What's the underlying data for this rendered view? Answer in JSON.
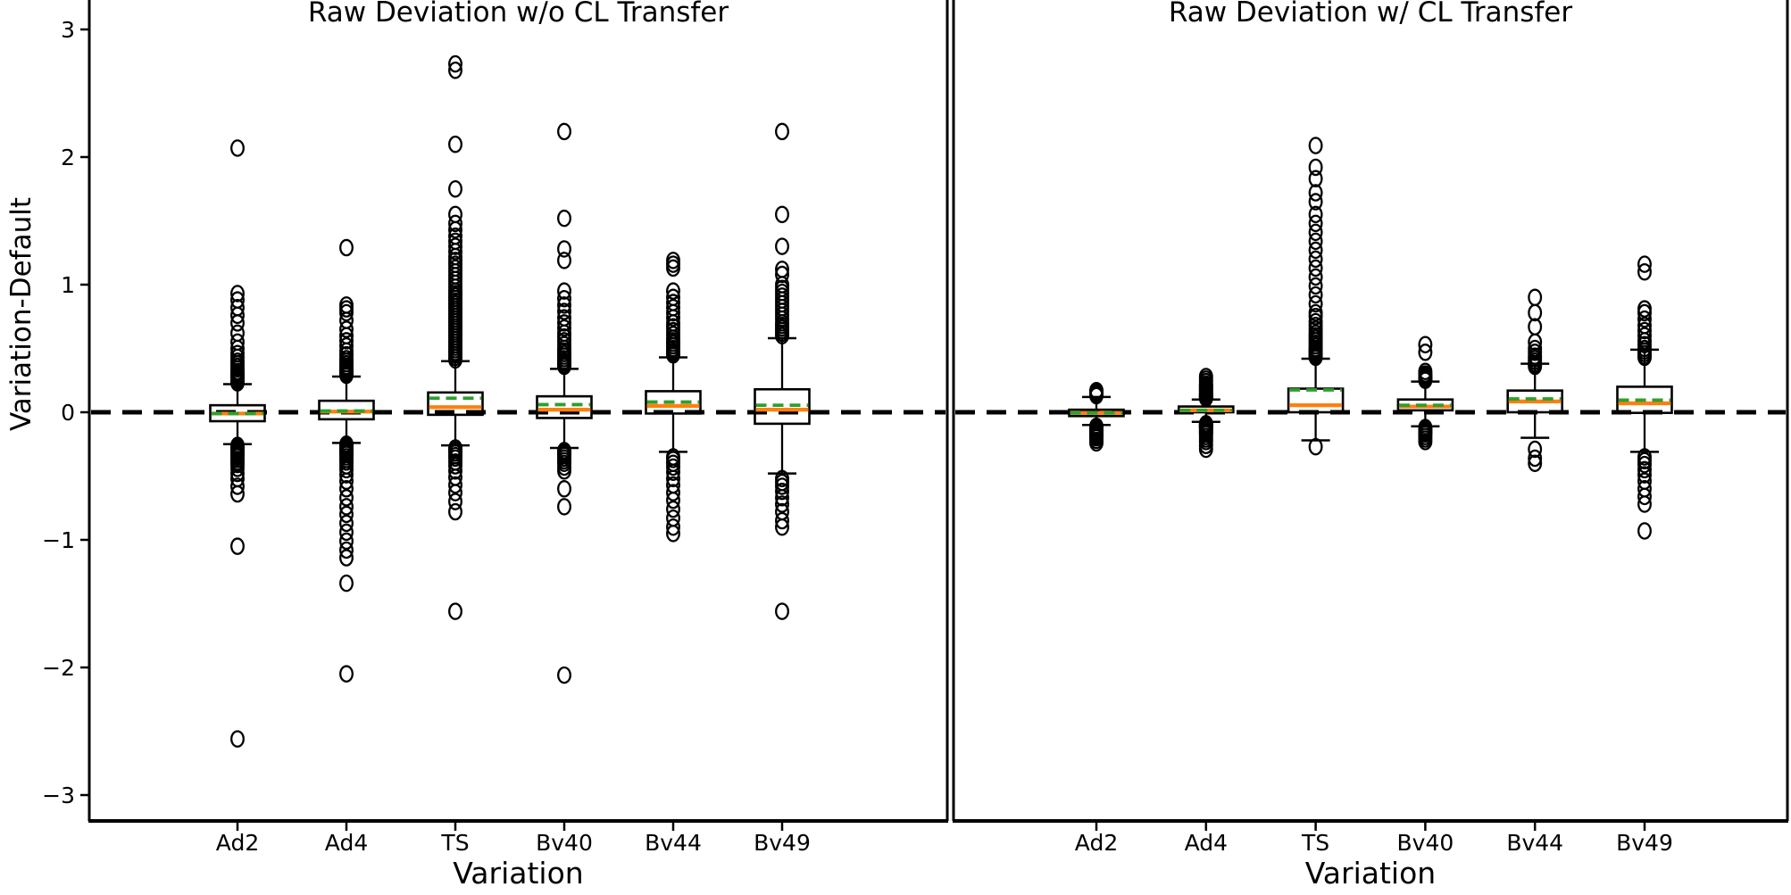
{
  "figure": {
    "background": "#ffffff",
    "colors": {
      "median_line": "#ff7f0e",
      "mean_line": "#2ca02c",
      "box_stroke": "#000000",
      "zero_line": "#000000"
    },
    "y_axis": {
      "label": "Variation-Default",
      "tick_values": [
        3,
        2,
        1,
        0,
        -1,
        -2,
        -3
      ],
      "tick_labels": [
        "3",
        "2",
        "1",
        "0",
        "−1",
        "−2",
        "−3"
      ]
    },
    "x_axis": {
      "label": "Variation"
    }
  },
  "chart_data": [
    {
      "type": "boxplot",
      "title": "Raw Deviation w/o CL Transfer",
      "xlabel": "Variation",
      "ylabel": "Variation-Default",
      "ylim": [
        -3.2,
        3.23
      ],
      "zero_reference_line": 0,
      "categories": [
        "Ad2",
        "Ad4",
        "TS",
        "Bv40",
        "Bv44",
        "Bv49"
      ],
      "boxes": [
        {
          "label": "Ad2",
          "q1": -0.07,
          "median": -0.01,
          "q3": 0.055,
          "whisker_low": -0.25,
          "whisker_high": 0.22,
          "mean": -0.01,
          "outliers_high": [
            0.23,
            0.24,
            0.25,
            0.26,
            0.27,
            0.28,
            0.29,
            0.3,
            0.31,
            0.32,
            0.34,
            0.36,
            0.38,
            0.4,
            0.43,
            0.46,
            0.5,
            0.55,
            0.62,
            0.7,
            0.76,
            0.82,
            0.88,
            0.93,
            2.07
          ],
          "outliers_low": [
            -0.26,
            -0.27,
            -0.28,
            -0.29,
            -0.3,
            -0.31,
            -0.32,
            -0.33,
            -0.34,
            -0.35,
            -0.37,
            -0.39,
            -0.41,
            -0.44,
            -0.48,
            -0.52,
            -0.58,
            -0.64,
            -1.05,
            -2.56
          ]
        },
        {
          "label": "Ad4",
          "q1": -0.055,
          "median": 0.005,
          "q3": 0.09,
          "whisker_low": -0.24,
          "whisker_high": 0.28,
          "mean": 0.01,
          "outliers_high": [
            0.29,
            0.3,
            0.31,
            0.32,
            0.33,
            0.34,
            0.35,
            0.36,
            0.38,
            0.4,
            0.42,
            0.45,
            0.48,
            0.52,
            0.56,
            0.6,
            0.65,
            0.72,
            0.78,
            0.81,
            0.84,
            1.29
          ],
          "outliers_low": [
            -0.25,
            -0.26,
            -0.27,
            -0.28,
            -0.29,
            -0.3,
            -0.31,
            -0.32,
            -0.33,
            -0.35,
            -0.37,
            -0.39,
            -0.42,
            -0.45,
            -0.49,
            -0.54,
            -0.6,
            -0.67,
            -0.74,
            -0.8,
            -0.87,
            -0.94,
            -1.01,
            -1.08,
            -1.14,
            -1.34,
            -2.05
          ]
        },
        {
          "label": "TS",
          "q1": -0.02,
          "median": 0.04,
          "q3": 0.155,
          "whisker_low": -0.26,
          "whisker_high": 0.4,
          "mean": 0.11,
          "outliers_high": [
            0.41,
            0.43,
            0.45,
            0.47,
            0.49,
            0.51,
            0.53,
            0.55,
            0.57,
            0.59,
            0.61,
            0.63,
            0.65,
            0.67,
            0.69,
            0.71,
            0.73,
            0.75,
            0.77,
            0.79,
            0.81,
            0.83,
            0.85,
            0.87,
            0.89,
            0.91,
            0.93,
            0.95,
            0.98,
            1.01,
            1.04,
            1.07,
            1.1,
            1.13,
            1.16,
            1.19,
            1.22,
            1.26,
            1.3,
            1.34,
            1.38,
            1.43,
            1.48,
            1.55,
            1.75,
            2.1,
            2.68,
            2.73
          ],
          "outliers_low": [
            -0.28,
            -0.29,
            -0.3,
            -0.32,
            -0.34,
            -0.36,
            -0.39,
            -0.42,
            -0.46,
            -0.51,
            -0.57,
            -0.63,
            -0.7,
            -0.78,
            -1.56
          ]
        },
        {
          "label": "Bv40",
          "q1": -0.045,
          "median": 0.02,
          "q3": 0.125,
          "whisker_low": -0.28,
          "whisker_high": 0.34,
          "mean": 0.06,
          "outliers_high": [
            0.36,
            0.37,
            0.38,
            0.39,
            0.4,
            0.42,
            0.44,
            0.46,
            0.48,
            0.5,
            0.53,
            0.56,
            0.59,
            0.62,
            0.66,
            0.7,
            0.74,
            0.79,
            0.84,
            0.89,
            0.95,
            1.19,
            1.28,
            1.52,
            2.2
          ],
          "outliers_low": [
            -0.3,
            -0.31,
            -0.32,
            -0.33,
            -0.34,
            -0.36,
            -0.38,
            -0.4,
            -0.43,
            -0.46,
            -0.6,
            -0.74,
            -2.06
          ]
        },
        {
          "label": "Bv44",
          "q1": -0.01,
          "median": 0.05,
          "q3": 0.165,
          "whisker_low": -0.31,
          "whisker_high": 0.43,
          "mean": 0.08,
          "outliers_high": [
            0.45,
            0.46,
            0.47,
            0.48,
            0.5,
            0.52,
            0.54,
            0.56,
            0.58,
            0.61,
            0.64,
            0.67,
            0.7,
            0.74,
            0.78,
            0.82,
            0.86,
            0.9,
            0.95,
            1.13,
            1.16,
            1.19
          ],
          "outliers_low": [
            -0.35,
            -0.37,
            -0.4,
            -0.43,
            -0.47,
            -0.52,
            -0.57,
            -0.63,
            -0.69,
            -0.76,
            -0.83,
            -0.9,
            -0.95
          ]
        },
        {
          "label": "Bv49",
          "q1": -0.09,
          "median": 0.02,
          "q3": 0.18,
          "whisker_low": -0.48,
          "whisker_high": 0.58,
          "mean": 0.055,
          "outliers_high": [
            0.6,
            0.62,
            0.64,
            0.66,
            0.68,
            0.7,
            0.73,
            0.76,
            0.79,
            0.82,
            0.85,
            0.88,
            0.91,
            0.94,
            0.97,
            1.0,
            1.08,
            1.12,
            1.3,
            1.55,
            2.2
          ],
          "outliers_low": [
            -0.52,
            -0.55,
            -0.58,
            -0.62,
            -0.67,
            -0.72,
            -0.78,
            -0.85,
            -0.9,
            -1.56
          ]
        }
      ]
    },
    {
      "type": "boxplot",
      "title": "Raw Deviation w/ CL Transfer",
      "xlabel": "Variation",
      "ylabel": "",
      "ylim": [
        -3.2,
        3.23
      ],
      "zero_reference_line": 0,
      "categories": [
        "Ad2",
        "Ad4",
        "TS",
        "Bv40",
        "Bv44",
        "Bv49"
      ],
      "boxes": [
        {
          "label": "Ad2",
          "q1": -0.03,
          "median": -0.005,
          "q3": 0.02,
          "whisker_low": -0.1,
          "whisker_high": 0.12,
          "mean": -0.005,
          "outliers_high": [
            0.13,
            0.135,
            0.14,
            0.145,
            0.15,
            0.155,
            0.16,
            0.165,
            0.17
          ],
          "outliers_low": [
            -0.11,
            -0.115,
            -0.12,
            -0.125,
            -0.13,
            -0.135,
            -0.14,
            -0.15,
            -0.16,
            -0.17,
            -0.18,
            -0.19,
            -0.2,
            -0.22,
            -0.24
          ]
        },
        {
          "label": "Ad4",
          "q1": 0.0,
          "median": 0.015,
          "q3": 0.045,
          "whisker_low": -0.075,
          "whisker_high": 0.1,
          "mean": 0.015,
          "outliers_high": [
            0.11,
            0.115,
            0.12,
            0.125,
            0.13,
            0.135,
            0.14,
            0.15,
            0.16,
            0.17,
            0.18,
            0.19,
            0.2,
            0.21,
            0.22,
            0.24,
            0.26,
            0.28
          ],
          "outliers_low": [
            -0.09,
            -0.095,
            -0.1,
            -0.105,
            -0.11,
            -0.115,
            -0.12,
            -0.13,
            -0.14,
            -0.15,
            -0.16,
            -0.17,
            -0.19,
            -0.21,
            -0.23,
            -0.26,
            -0.29
          ]
        },
        {
          "label": "TS",
          "q1": 0.0,
          "median": 0.055,
          "q3": 0.185,
          "whisker_low": -0.22,
          "whisker_high": 0.42,
          "mean": 0.175,
          "outliers_high": [
            0.43,
            0.44,
            0.45,
            0.46,
            0.47,
            0.48,
            0.49,
            0.5,
            0.52,
            0.54,
            0.56,
            0.58,
            0.6,
            0.62,
            0.65,
            0.68,
            0.71,
            0.75,
            0.78,
            0.85,
            0.92,
            0.99,
            1.06,
            1.13,
            1.2,
            1.27,
            1.34,
            1.41,
            1.48,
            1.55,
            1.65,
            1.72,
            1.83,
            1.92,
            2.09
          ],
          "outliers_low": [
            -0.27
          ]
        },
        {
          "label": "Bv40",
          "q1": 0.015,
          "median": 0.045,
          "q3": 0.1,
          "whisker_low": -0.11,
          "whisker_high": 0.24,
          "mean": 0.055,
          "outliers_high": [
            0.25,
            0.26,
            0.27,
            0.28,
            0.29,
            0.3,
            0.32,
            0.47,
            0.53
          ],
          "outliers_low": [
            -0.12,
            -0.13,
            -0.14,
            -0.15,
            -0.16,
            -0.17,
            -0.19,
            -0.21,
            -0.23
          ]
        },
        {
          "label": "Bv44",
          "q1": 0.0,
          "median": 0.085,
          "q3": 0.17,
          "whisker_low": -0.2,
          "whisker_high": 0.38,
          "mean": 0.105,
          "outliers_high": [
            0.36,
            0.37,
            0.38,
            0.4,
            0.42,
            0.44,
            0.47,
            0.5,
            0.55,
            0.67,
            0.78,
            0.9
          ],
          "outliers_low": [
            -0.29,
            -0.36,
            -0.4
          ]
        },
        {
          "label": "Bv49",
          "q1": -0.005,
          "median": 0.07,
          "q3": 0.2,
          "whisker_low": -0.31,
          "whisker_high": 0.49,
          "mean": 0.095,
          "outliers_high": [
            0.43,
            0.44,
            0.46,
            0.48,
            0.5,
            0.53,
            0.56,
            0.6,
            0.64,
            0.68,
            0.73,
            0.78,
            0.81,
            1.1,
            1.16
          ],
          "outliers_low": [
            -0.35,
            -0.38,
            -0.41,
            -0.45,
            -0.49,
            -0.54,
            -0.6,
            -0.66,
            -0.72,
            -0.93
          ]
        }
      ]
    }
  ]
}
